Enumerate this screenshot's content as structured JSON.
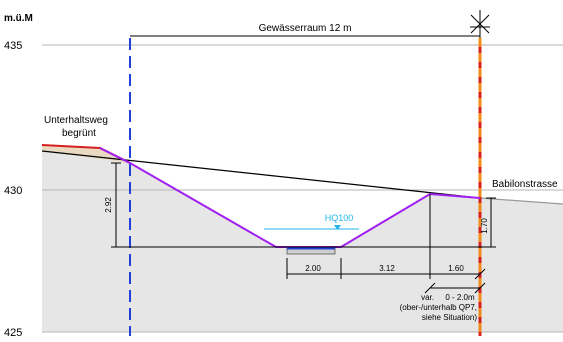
{
  "section": {
    "unit_label": "m.ü.M",
    "elevations": [
      {
        "id": "435",
        "label": "435"
      },
      {
        "id": "430",
        "label": "430"
      },
      {
        "id": "425",
        "label": "425"
      }
    ],
    "space_label": "Gewässerraum 12 m",
    "path_label_line1": "Unterhaltsweg",
    "path_label_line2": "begrünt",
    "road_label": "Babilonstrasse",
    "flood_label": "HQ100",
    "dimensions": {
      "left_height": "2.92",
      "right_height": "1.70",
      "bed_width": "2.00",
      "slope_width": "3.12",
      "right_width": "1.60",
      "var_label": "var.",
      "var_range": "0 - 2.0m",
      "var_note_1": "(ober-/unterhalb QP7,",
      "var_note_2": "siehe Situation)"
    }
  },
  "colors": {
    "channel": "#a020f0",
    "boundary_left": "#1f3fd6",
    "boundary_right": "#f28a1a",
    "ground": "#e6e6e6",
    "path": "#d62020",
    "water": "#1fb5e8"
  }
}
